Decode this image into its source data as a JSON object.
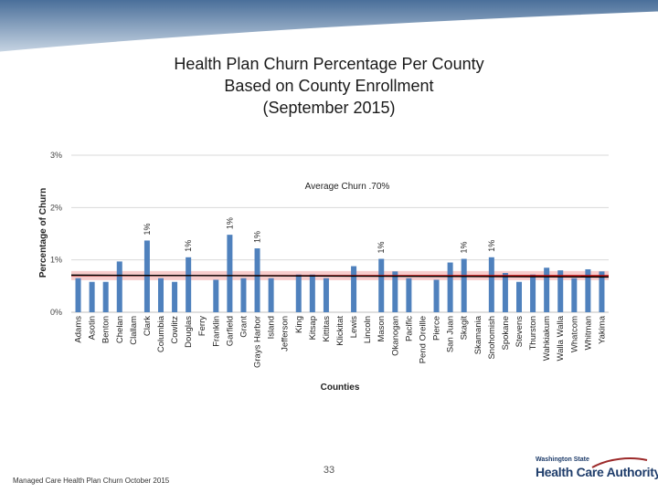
{
  "slide": {
    "title_lines": [
      "Health Plan Churn Percentage Per County",
      "Based on County Enrollment",
      "(September 2015)"
    ],
    "footer_left": "Managed Care Health Plan Churn October 2015",
    "page_number": "33",
    "logo_small": "Washington State",
    "logo_big": "Health Care Authority"
  },
  "colors": {
    "bar": "#4f81bd",
    "average_line": "#c00000",
    "average_band": "#f4b6b6",
    "trend_line": "#000000",
    "grid": "#d9d9d9",
    "band_top": "#1f4e79",
    "logo_accent": "#9c2a2a"
  },
  "chart_data": {
    "type": "bar",
    "title": "",
    "xlabel": "Counties",
    "ylabel": "Percentage of Churn",
    "ylim": [
      0,
      3
    ],
    "yticks": [
      0,
      1,
      2,
      3
    ],
    "ytick_labels": [
      "0%",
      "1%",
      "2%",
      "3%"
    ],
    "grid": true,
    "annotation": "Average Churn .70%",
    "average": 0.7,
    "categories": [
      "Adams",
      "Asotin",
      "Benton",
      "Chelan",
      "Clallam",
      "Clark",
      "Columbia",
      "Cowlitz",
      "Douglas",
      "Ferry",
      "Franklin",
      "Garfield",
      "Grant",
      "Grays Harbor",
      "Island",
      "Jefferson",
      "King",
      "Kitsap",
      "Kittitas",
      "Klickitat",
      "Lewis",
      "Lincoln",
      "Mason",
      "Okanogan",
      "Pacific",
      "Pend Oreille",
      "Pierce",
      "San Juan",
      "Skagit",
      "Skamania",
      "Snohomish",
      "Spokane",
      "Stevens",
      "Thurston",
      "Wahkiakum",
      "Walla Walla",
      "Whatcom",
      "Whitman",
      "Yakima"
    ],
    "values": [
      0.65,
      0.58,
      0.58,
      0.97,
      0.0,
      1.37,
      0.65,
      0.58,
      1.05,
      0.0,
      0.62,
      1.48,
      0.65,
      1.22,
      0.65,
      0.0,
      0.72,
      0.72,
      0.65,
      0.0,
      0.88,
      0.0,
      1.02,
      0.78,
      0.65,
      0.0,
      0.62,
      0.95,
      1.02,
      0.0,
      1.05,
      0.75,
      0.58,
      0.72,
      0.85,
      0.8,
      0.65,
      0.82,
      0.78
    ],
    "data_labels": [
      "",
      "",
      "",
      "",
      "",
      "1%",
      "",
      "",
      "1%",
      "",
      "",
      "1%",
      "",
      "1%",
      "",
      "",
      "",
      "",
      "",
      "",
      "",
      "",
      "1%",
      "",
      "",
      "",
      "",
      "",
      "1%",
      "",
      "1%",
      "",
      "",
      "",
      "",
      "",
      "",
      "",
      ""
    ]
  }
}
